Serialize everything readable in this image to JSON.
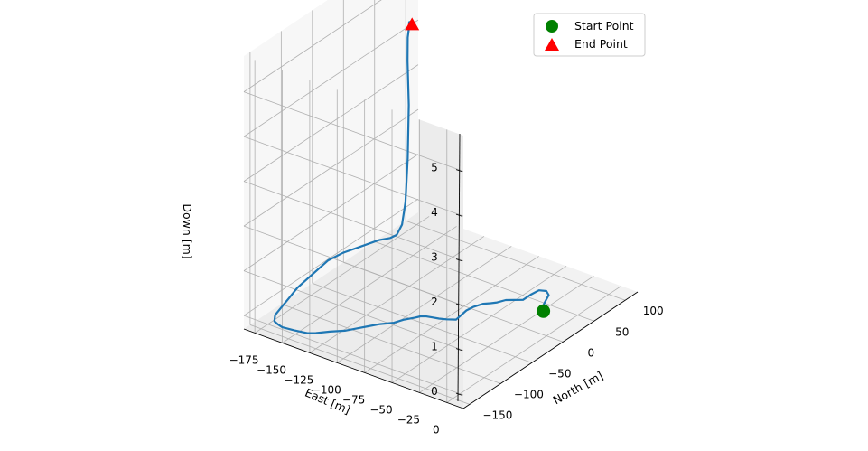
{
  "chart_data": {
    "type": "line3d",
    "title": "",
    "xlabel": "North [m]",
    "ylabel": "East [m]",
    "zlabel": "Down [m]",
    "xlim": [
      -160,
      120
    ],
    "ylim": [
      -185,
      15
    ],
    "zlim": [
      -0.3,
      5.8
    ],
    "x_ticks": [
      -150,
      -100,
      -50,
      0,
      50,
      100
    ],
    "y_ticks": [
      0,
      -25,
      -50,
      -75,
      -100,
      -125,
      -150,
      -175
    ],
    "z_ticks": [
      0,
      1,
      2,
      3,
      4,
      5
    ],
    "grid": true,
    "legend_position": "top-right",
    "legend": [
      {
        "label": "Start Point",
        "marker": "circle",
        "color": "#008000"
      },
      {
        "label": "End Point",
        "marker": "triangle",
        "color": "#ff0000"
      }
    ],
    "series": [
      {
        "color": "#1f77b4",
        "north": [
          -5,
          0,
          5,
          10,
          20,
          30,
          35,
          32,
          25,
          15,
          10,
          5,
          0,
          -5,
          -10,
          -20,
          -30,
          -40,
          -50,
          -55,
          -58,
          -60,
          -62,
          -65,
          -70,
          -80,
          -90,
          -100,
          -110,
          -120,
          -130,
          -140,
          -150,
          -155,
          -158,
          -160,
          -158,
          -155,
          -145,
          -130,
          -110,
          -90,
          -70,
          -50,
          -30,
          -10,
          10,
          30,
          40,
          45,
          50,
          52,
          52,
          52,
          50,
          45,
          40,
          35,
          30,
          25,
          22
        ],
        "east": [
          0,
          -2,
          -5,
          -8,
          -12,
          -15,
          -20,
          -25,
          -28,
          -30,
          -35,
          -40,
          -45,
          -48,
          -52,
          -55,
          -56,
          -55,
          -54,
          -60,
          -65,
          -70,
          -75,
          -78,
          -80,
          -85,
          -88,
          -95,
          -100,
          -105,
          -110,
          -118,
          -125,
          -130,
          -140,
          -150,
          -155,
          -160,
          -165,
          -168,
          -172,
          -176,
          -178,
          -180,
          -182,
          -180,
          -175,
          -170,
          -165,
          -162,
          -160,
          -158,
          -156,
          -155,
          -155,
          -152,
          -148,
          -145,
          -140,
          -138,
          -135
        ],
        "down": [
          0.3,
          0.3,
          0.3,
          0.25,
          0.2,
          0.2,
          0.2,
          0.2,
          0.15,
          0.1,
          0.1,
          0.1,
          0.05,
          0.05,
          0.05,
          0.05,
          0.05,
          0.05,
          0.05,
          0.05,
          0.05,
          0.05,
          0.05,
          0.05,
          0.05,
          0.05,
          0.05,
          0.05,
          0.05,
          0.05,
          0.05,
          0.05,
          0.05,
          0.05,
          0.05,
          0.05,
          0.05,
          0.05,
          0.05,
          0.05,
          0.05,
          0.05,
          0.05,
          0.05,
          0.05,
          0.05,
          0.05,
          0.05,
          0.05,
          0.1,
          0.3,
          0.8,
          1.8,
          3.0,
          4.0,
          4.6,
          4.9,
          5.1,
          5.2,
          5.25,
          5.25
        ]
      }
    ],
    "start_point": {
      "north": -5,
      "east": 0,
      "down": 0.3
    },
    "end_point": {
      "north": 22,
      "east": -135,
      "down": 5.25
    }
  }
}
